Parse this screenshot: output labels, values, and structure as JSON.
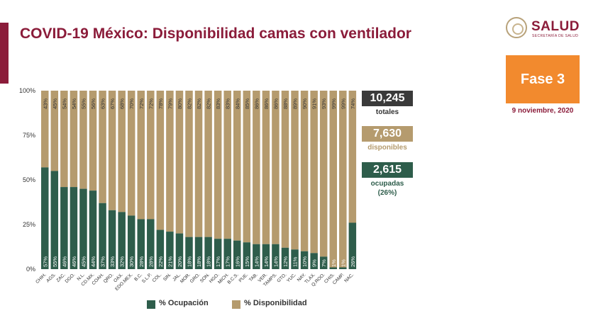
{
  "header": {
    "title": "COVID-19 México: Disponibilidad camas con ventilador",
    "logo_text": "SALUD",
    "logo_subtext": "SECRETARÍA DE SALUD"
  },
  "phase": {
    "label": "Fase 3",
    "date": "9 noviembre, 2020"
  },
  "stats": {
    "total": {
      "value": "10,245",
      "label": "totales"
    },
    "available": {
      "value": "7,630",
      "label": "disponibles"
    },
    "occupied": {
      "value": "2,615",
      "label": "ocupadas",
      "sublabel": "(26%)"
    }
  },
  "colors": {
    "occupied": "#2e5d4b",
    "available": "#b59b6e",
    "accent": "#8b1c3a",
    "phase": "#f28a2e"
  },
  "legend": {
    "occupied": "% Ocupación",
    "available": "% Disponibilidad"
  },
  "chart_data": {
    "type": "bar",
    "stacked": true,
    "categories": [
      "CHIH.",
      "AGS.",
      "ZAC.",
      "DGO.",
      "N.L.",
      "CD.MX.",
      "COAH.",
      "QRO.",
      "OAX.",
      "EDO.MEX.",
      "B.C.",
      "S.L.P.",
      "COL.",
      "SIN.",
      "JAL.",
      "MOR.",
      "GRO.",
      "SON.",
      "HGO.",
      "MICH.",
      "B.C.S.",
      "PUE.",
      "TAB.",
      "VER.",
      "TAMPS.",
      "GTO.",
      "YUC.",
      "NAY.",
      "TLAX.",
      "Q.ROO.",
      "CHIS.",
      "CAMP.",
      "NAC."
    ],
    "series": [
      {
        "name": "% Ocupación",
        "values": [
          57,
          55,
          46,
          46,
          45,
          44,
          37,
          33,
          32,
          30,
          28,
          28,
          22,
          21,
          20,
          18,
          18,
          18,
          17,
          17,
          16,
          15,
          14,
          14,
          14,
          12,
          11,
          10,
          9,
          7,
          1,
          1,
          26
        ]
      },
      {
        "name": "% Disponibilidad",
        "values": [
          43,
          45,
          54,
          54,
          55,
          56,
          63,
          67,
          68,
          70,
          72,
          72,
          78,
          79,
          80,
          82,
          82,
          82,
          83,
          83,
          84,
          85,
          86,
          86,
          86,
          88,
          89,
          90,
          91,
          93,
          99,
          99,
          74
        ]
      }
    ],
    "y_ticks": [
      "0%",
      "25%",
      "50%",
      "75%",
      "100%"
    ],
    "ylim": [
      0,
      100
    ]
  }
}
